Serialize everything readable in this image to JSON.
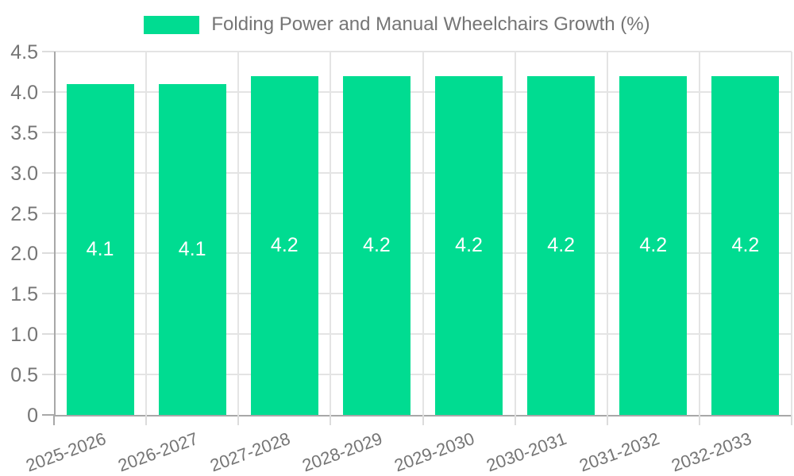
{
  "legend": {
    "items": [
      {
        "label": "Folding Power and Manual Wheelchairs Growth (%)",
        "color": "#00dc91"
      }
    ],
    "position": "top"
  },
  "chart_data": {
    "type": "bar",
    "title": "Folding Power and Manual Wheelchairs Growth (%)",
    "categories": [
      "2025-2026",
      "2026-2027",
      "2027-2028",
      "2028-2029",
      "2029-2030",
      "2030-2031",
      "2031-2032",
      "2032-2033"
    ],
    "values": [
      4.1,
      4.1,
      4.2,
      4.2,
      4.2,
      4.2,
      4.2,
      4.2
    ],
    "bar_labels": [
      "4.1",
      "4.1",
      "4.2",
      "4.2",
      "4.2",
      "4.2",
      "4.2",
      "4.2"
    ],
    "xlabel": "",
    "ylabel": "",
    "ylim": [
      0,
      4.5
    ],
    "ytick_step": 0.5,
    "ytick_labels": [
      "0",
      "0.5",
      "1.0",
      "1.5",
      "2.0",
      "2.5",
      "3.0",
      "3.5",
      "4.0",
      "4.5"
    ],
    "grid": true,
    "legend_position": "top",
    "colors": {
      "bar": "#00dc91",
      "bar_label": "#ffffff",
      "grid": "#e4e4e4",
      "tick": "#dcdcdc",
      "axis": "#a8a8a8",
      "text": "#757575"
    }
  }
}
